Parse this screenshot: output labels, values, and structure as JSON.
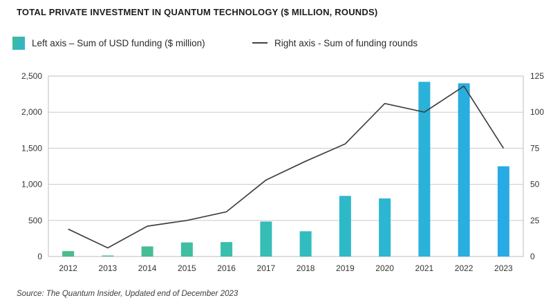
{
  "header": {
    "title": "TOTAL PRIVATE INVESTMENT IN QUANTUM TECHNOLOGY ($ MILLION, ROUNDS)"
  },
  "legend": {
    "items": [
      {
        "label": "Left axis – Sum of USD funding ($ million)",
        "swatch": "gradient-square",
        "swatch_colors": [
          "#3fbd97",
          "#2fb2d6"
        ]
      },
      {
        "label": "Right axis - Sum of funding rounds",
        "swatch": "line",
        "color": "#404040"
      }
    ]
  },
  "chart_data": {
    "type": "combo",
    "title": "TOTAL PRIVATE INVESTMENT IN QUANTUM TECHNOLOGY ($ MILLION, ROUNDS)",
    "categories": [
      "2012",
      "2013",
      "2014",
      "2015",
      "2016",
      "2017",
      "2018",
      "2019",
      "2020",
      "2021",
      "2022",
      "2023"
    ],
    "series": [
      {
        "name": "Left axis – Sum of USD funding ($ million)",
        "type": "bar",
        "axis": "left",
        "values": [
          75,
          15,
          140,
          195,
          200,
          485,
          350,
          840,
          805,
          2420,
          2400,
          1250
        ],
        "bar_colors": [
          "#4cbb8e",
          "#58c09c",
          "#46bd97",
          "#3fbea2",
          "#3abead",
          "#35bdb6",
          "#31bcc0",
          "#2eb9c9",
          "#2cb6d1",
          "#2ab2d9",
          "#29aee0",
          "#28abe4"
        ]
      },
      {
        "name": "Right axis - Sum of funding rounds",
        "type": "line",
        "axis": "right",
        "values": [
          19,
          6,
          21,
          25,
          31,
          53,
          66,
          78,
          106,
          100,
          118,
          75
        ],
        "color": "#404040"
      }
    ],
    "left_axis": {
      "min": 0,
      "max": 2500,
      "tick_step": 500,
      "tick_labels": [
        "0",
        "500",
        "1,000",
        "1,500",
        "2,000",
        "2,500"
      ]
    },
    "right_axis": {
      "min": 0,
      "max": 125,
      "tick_step": 25,
      "tick_labels": [
        "0",
        "25",
        "50",
        "75",
        "100",
        "125"
      ]
    },
    "grid": true,
    "legend_position": "top"
  },
  "source": {
    "text": "Source: The Quantum Insider, Updated end of December 2023"
  },
  "colors": {
    "grid": "#cacaca",
    "plot_border": "#bdbdbd",
    "zero_line": "#9e9e9e",
    "axis_text": "#333333",
    "line_series": "#404040",
    "title_text": "#1c1c1c"
  }
}
